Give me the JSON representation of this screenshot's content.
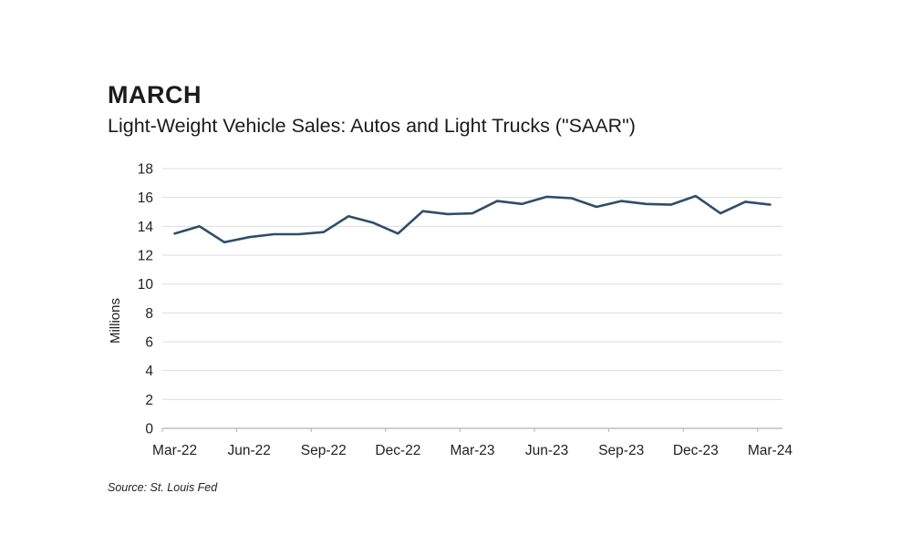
{
  "header": {
    "kicker": "MARCH",
    "title": "Light-Weight Vehicle Sales: Autos and Light Trucks (\"SAAR\")"
  },
  "source": "Source: St. Louis Fed",
  "chart_data": {
    "type": "line",
    "title": "Light-Weight Vehicle Sales: Autos and Light Trucks (\"SAAR\")",
    "xlabel": "",
    "ylabel": "Millions",
    "x": [
      "Mar-22",
      "Apr-22",
      "May-22",
      "Jun-22",
      "Jul-22",
      "Aug-22",
      "Sep-22",
      "Oct-22",
      "Nov-22",
      "Dec-22",
      "Jan-23",
      "Feb-23",
      "Mar-23",
      "Apr-23",
      "May-23",
      "Jun-23",
      "Jul-23",
      "Aug-23",
      "Sep-23",
      "Oct-23",
      "Nov-23",
      "Dec-23",
      "Jan-24",
      "Feb-24",
      "Mar-24"
    ],
    "values": [
      13.5,
      14.0,
      12.9,
      13.25,
      13.45,
      13.45,
      13.6,
      14.7,
      14.25,
      13.5,
      15.05,
      14.85,
      14.9,
      15.75,
      15.55,
      16.05,
      15.95,
      15.35,
      15.75,
      15.55,
      15.5,
      16.1,
      14.9,
      15.7,
      15.5
    ],
    "x_tick_labels": [
      "Mar-22",
      "Jun-22",
      "Sep-22",
      "Dec-22",
      "Mar-23",
      "Jun-23",
      "Sep-23",
      "Dec-23",
      "Mar-24"
    ],
    "x_tick_every": 3,
    "y_ticks": [
      0,
      2,
      4,
      6,
      8,
      10,
      12,
      14,
      16,
      18
    ],
    "ylim": [
      0,
      18
    ],
    "grid": "horizontal",
    "legend": "none",
    "colors": {
      "line": "#2e4d6b",
      "gridline": "#dedede",
      "axis": "#b2b2b2",
      "text": "#1f1f1f"
    }
  }
}
